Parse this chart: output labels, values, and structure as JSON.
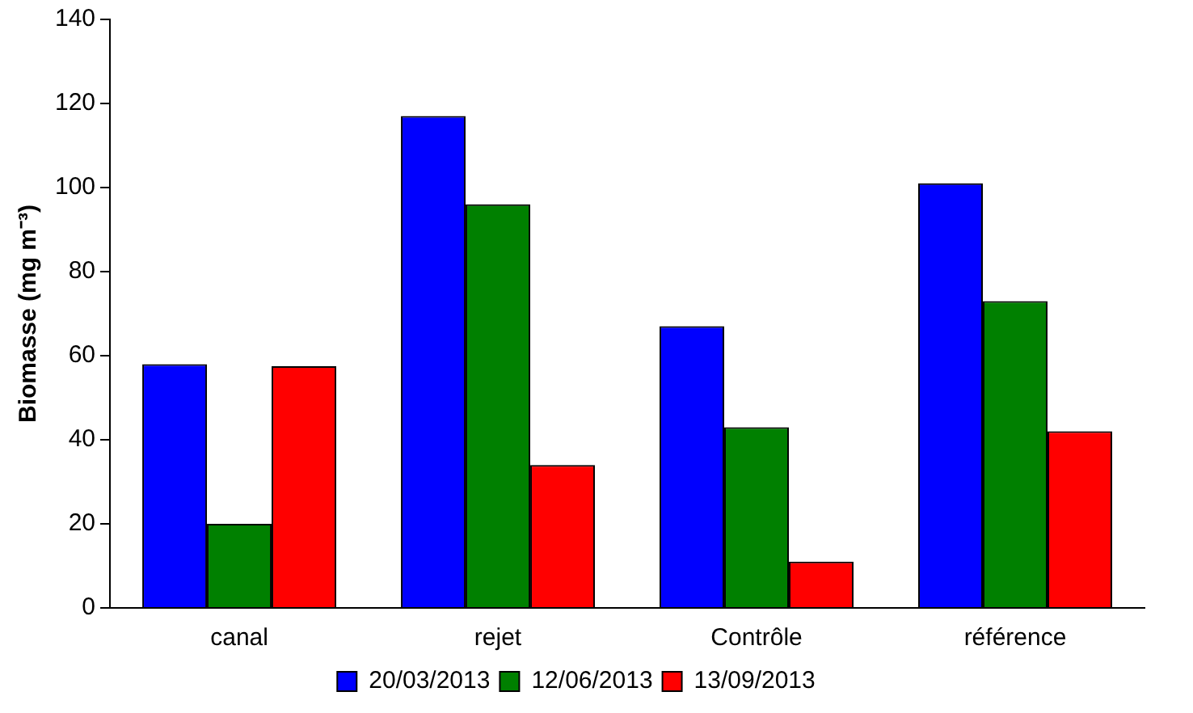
{
  "chart_data": {
    "type": "bar",
    "ylabel": "Biomasse (mg m⁻³)",
    "categories": [
      "canal",
      "rejet",
      "Contrôle",
      "référence"
    ],
    "series": [
      {
        "name": "20/03/2013",
        "color": "#0000ff",
        "values": [
          58,
          117,
          67,
          101
        ]
      },
      {
        "name": "12/06/2013",
        "color": "#008000",
        "values": [
          20,
          96,
          43,
          73
        ]
      },
      {
        "name": "13/09/2013",
        "color": "#ff0000",
        "values": [
          57.5,
          34,
          11,
          42
        ]
      }
    ],
    "ylim": [
      0,
      140
    ],
    "yticks": [
      0,
      20,
      40,
      60,
      80,
      100,
      120,
      140
    ],
    "grid": false,
    "legend": "bottom"
  }
}
